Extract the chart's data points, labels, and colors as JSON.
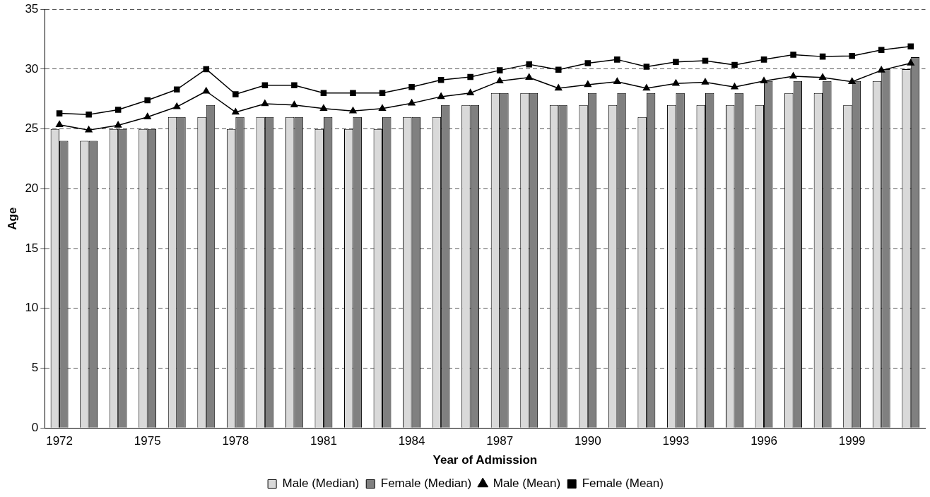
{
  "chart_data": {
    "type": "bar",
    "xlabel": "Year of Admission",
    "ylabel": "Age",
    "categories": [
      "1972",
      null,
      null,
      "1975",
      null,
      null,
      "1978",
      null,
      null,
      "1981",
      null,
      null,
      "1984",
      null,
      null,
      "1987",
      null,
      null,
      "1990",
      null,
      null,
      "1993",
      null,
      null,
      "1996",
      null,
      null,
      "1999",
      null,
      null
    ],
    "series": [
      {
        "name": "Male (Median)",
        "color": "#d9d9d9",
        "values": [
          25,
          24,
          25,
          25,
          26,
          26,
          25,
          26,
          26,
          25,
          25,
          25,
          26,
          26,
          27,
          28,
          28,
          27,
          27,
          27,
          26,
          27,
          27,
          27,
          27,
          28,
          28,
          27,
          29,
          30
        ]
      },
      {
        "name": "Female (Median)",
        "color": "#808080",
        "values": [
          24,
          24,
          25,
          25,
          26,
          27,
          26,
          26,
          26,
          26,
          26,
          26,
          26,
          27,
          27,
          28,
          28,
          27,
          28,
          28,
          28,
          28,
          28,
          28,
          29,
          29,
          29,
          29,
          30,
          31
        ]
      },
      {
        "name": "Male (Mean)",
        "type": "line",
        "marker": "triangle",
        "color": "#000000",
        "values": [
          25.35,
          24.9,
          25.3,
          26.0,
          26.85,
          28.15,
          26.4,
          27.1,
          27.0,
          26.7,
          26.5,
          26.7,
          27.15,
          27.7,
          28.0,
          29.0,
          29.3,
          28.4,
          28.7,
          28.95,
          28.4,
          28.8,
          28.9,
          28.5,
          29.0,
          29.4,
          29.3,
          28.95,
          29.9,
          30.5
        ]
      },
      {
        "name": "Female (Mean)",
        "type": "line",
        "marker": "square",
        "color": "#000000",
        "values": [
          26.3,
          26.2,
          26.6,
          27.4,
          28.3,
          30.0,
          27.9,
          28.65,
          28.65,
          28.0,
          28.0,
          28.0,
          28.5,
          29.1,
          29.35,
          29.9,
          30.4,
          29.95,
          30.5,
          30.8,
          30.2,
          30.6,
          30.7,
          30.35,
          30.8,
          31.2,
          31.05,
          31.1,
          31.6,
          31.9
        ]
      }
    ],
    "ylim": [
      0,
      35
    ],
    "yticks": [
      0,
      5,
      10,
      15,
      20,
      25,
      30,
      35
    ],
    "grid": "y",
    "legend": "bottom",
    "line_style": "solid"
  }
}
